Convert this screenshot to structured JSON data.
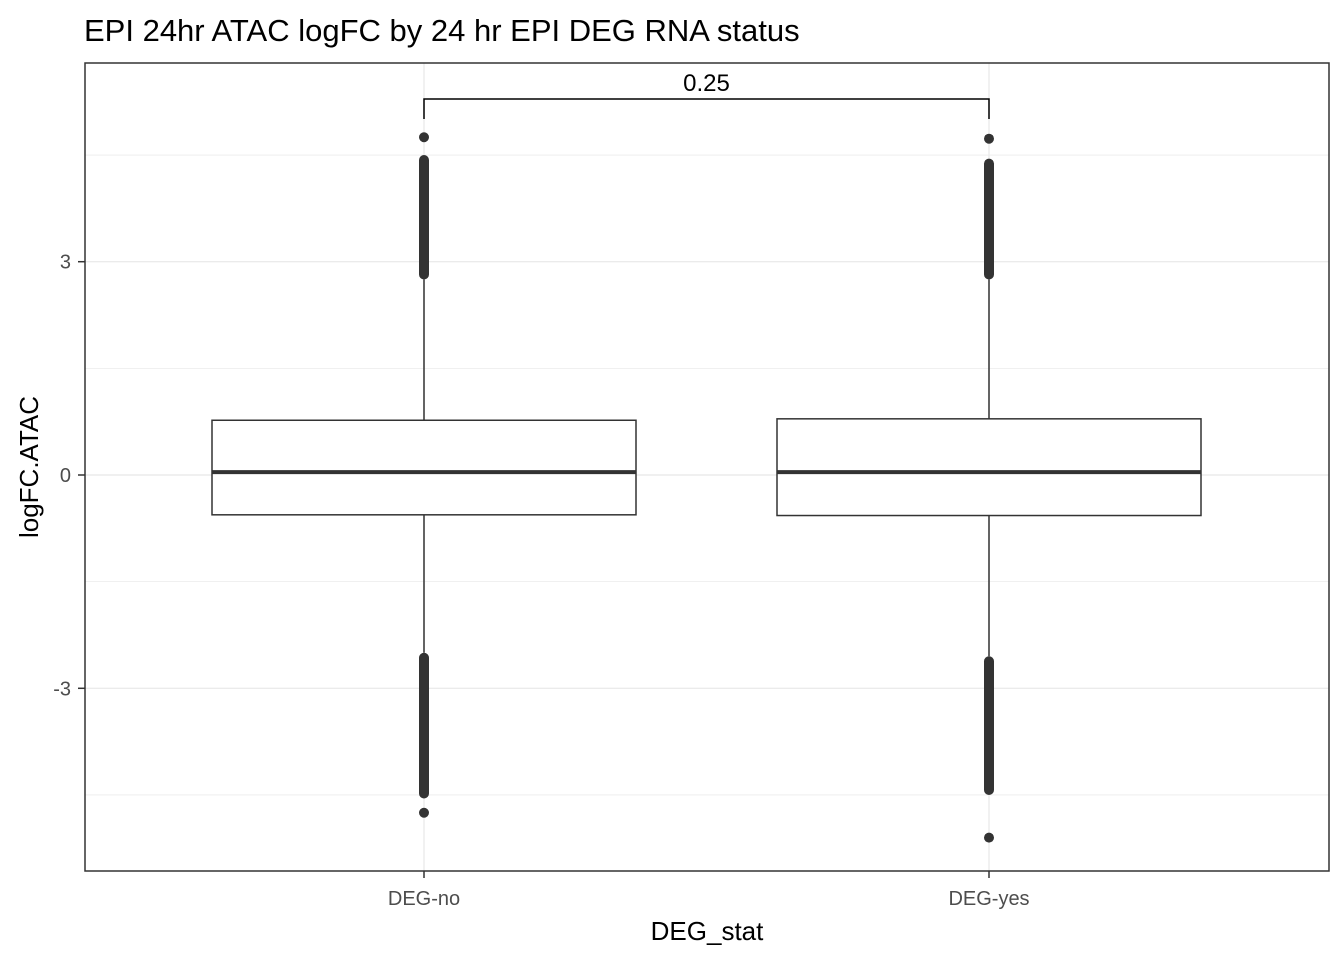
{
  "chart_data": {
    "type": "box",
    "title": "EPI 24hr ATAC logFC by 24 hr EPI DEG RNA status",
    "xlabel": "DEG_stat",
    "ylabel": "logFC.ATAC",
    "categories": [
      "DEG-no",
      "DEG-yes"
    ],
    "yticks": [
      -3,
      0,
      3
    ],
    "ylim": [
      -5.6,
      5.8
    ],
    "grid": true,
    "boxes": [
      {
        "category": "DEG-no",
        "q1": -0.56,
        "median": 0.04,
        "q3": 0.77,
        "whisker_low": -2.5,
        "whisker_high": 2.75,
        "outliers_low_range": [
          -4.55,
          -2.5
        ],
        "outliers_low_extra": [
          -4.75
        ],
        "outliers_high_range": [
          2.75,
          4.5
        ],
        "outliers_high_extra": [
          4.75
        ]
      },
      {
        "category": "DEG-yes",
        "q1": -0.57,
        "median": 0.04,
        "q3": 0.79,
        "whisker_low": -2.55,
        "whisker_high": 2.75,
        "outliers_low_range": [
          -4.5,
          -2.55
        ],
        "outliers_low_extra": [
          -5.1
        ],
        "outliers_high_range": [
          2.75,
          4.45
        ],
        "outliers_high_extra": [
          4.73
        ]
      }
    ],
    "comparison": {
      "groups": [
        "DEG-no",
        "DEG-yes"
      ],
      "label": "0.25"
    },
    "colors": {
      "box_stroke": "#333333",
      "points": "#333333",
      "grid": "#ebebeb",
      "panel_border": "#333333",
      "tick_text": "#4d4d4d"
    }
  }
}
